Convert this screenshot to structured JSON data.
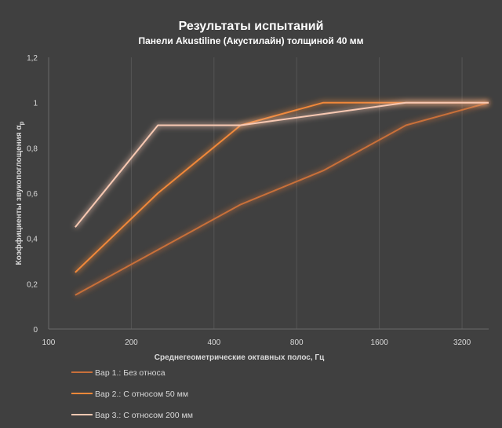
{
  "chart_data": {
    "type": "line",
    "title": "Результаты испытаний",
    "subtitle": "Панели Akustiline (Акустилайн) толщиной 40 мм",
    "xlabel": "Среднегеометрические октавных полос, Гц",
    "ylabel_main": "Коэффициенты звукопоглощения α",
    "ylabel_sub": "p",
    "x_scale": "log2",
    "xlim": [
      100,
      4000
    ],
    "x_ticks": [
      100,
      200,
      400,
      800,
      1600,
      3200
    ],
    "x_tick_labels": [
      "100",
      "200",
      "400",
      "800",
      "1600",
      "3200"
    ],
    "ylim": [
      0,
      1.2
    ],
    "y_ticks": [
      0,
      0.2,
      0.4,
      0.6,
      0.8,
      1,
      1.2
    ],
    "y_tick_labels": [
      "0",
      "0,2",
      "0,4",
      "0,6",
      "0,8",
      "1",
      "1,2"
    ],
    "grid": "vertical",
    "legend_position": "bottom-left",
    "x": [
      125,
      250,
      500,
      1000,
      2000,
      4000
    ],
    "series": [
      {
        "name": "Вар 1.: Без относа",
        "color": "#c8703a",
        "values": [
          0.15,
          0.35,
          0.55,
          0.7,
          0.9,
          1.0
        ]
      },
      {
        "name": "Вар 2.: С относом 50 мм",
        "color": "#f0883a",
        "values": [
          0.25,
          0.6,
          0.9,
          1.0,
          1.0,
          1.0
        ]
      },
      {
        "name": "Вар 3.: С относом 200 мм",
        "color": "#f7c8b2",
        "values": [
          0.45,
          0.9,
          0.9,
          0.95,
          1.0,
          1.0
        ]
      }
    ]
  }
}
